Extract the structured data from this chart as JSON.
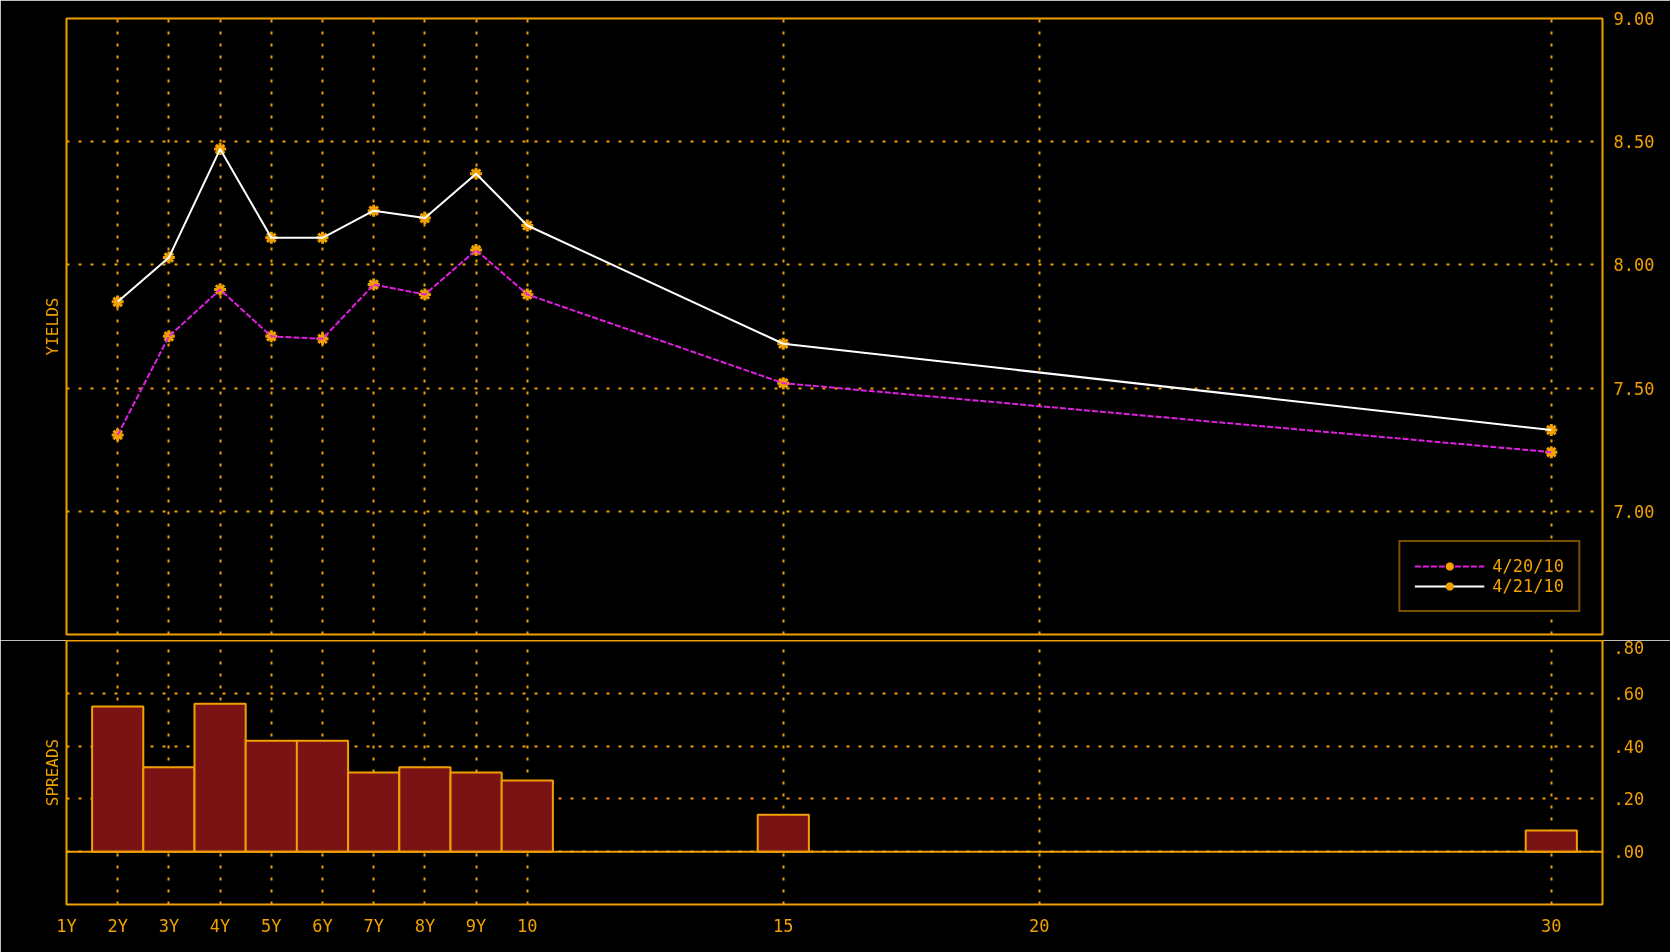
{
  "chart_data": [
    {
      "type": "line",
      "ylabel": "YIELDS",
      "x": [
        2,
        3,
        4,
        5,
        6,
        7,
        8,
        9,
        10,
        15,
        30
      ],
      "series": [
        {
          "name": "4/20/10",
          "color": "#e020e0",
          "line_style": "dashed",
          "values": [
            7.31,
            7.71,
            7.9,
            7.71,
            7.7,
            7.92,
            7.88,
            8.06,
            7.88,
            7.52,
            7.24
          ]
        },
        {
          "name": "4/21/10",
          "color": "#ffffff",
          "line_style": "solid",
          "values": [
            7.85,
            8.03,
            8.47,
            8.11,
            8.11,
            8.22,
            8.19,
            8.37,
            8.16,
            7.68,
            7.33
          ]
        }
      ],
      "marker": "cross",
      "xlim": [
        1,
        31
      ],
      "xticks": [
        1,
        2,
        3,
        4,
        5,
        6,
        7,
        8,
        9,
        10,
        15,
        20,
        30
      ],
      "ylim": [
        6.5,
        9.0
      ],
      "yticks": [
        {
          "value": 7,
          "label": "7.00"
        },
        {
          "value": 7.5,
          "label": "7.50"
        },
        {
          "value": 8,
          "label": "8.00"
        },
        {
          "value": 8.5,
          "label": "8.50"
        },
        {
          "value": 9,
          "label": "9.00"
        }
      ],
      "grid": true,
      "legend": "bottom right",
      "tick_labels": "y"
    },
    {
      "type": "bar",
      "ylabel": "SPREADS",
      "x": [
        2,
        3,
        4,
        5,
        6,
        7,
        8,
        9,
        10,
        15,
        30
      ],
      "values": [
        0.55,
        0.32,
        0.56,
        0.42,
        0.42,
        0.3,
        0.32,
        0.3,
        0.27,
        0.14,
        0.08
      ],
      "color": "#7a1414",
      "xlim": [
        1,
        31
      ],
      "xticks": [
        {
          "value": 1,
          "label": "1Y"
        },
        {
          "value": 2,
          "label": "2Y"
        },
        {
          "value": 3,
          "label": "3Y"
        },
        {
          "value": 4,
          "label": "4Y"
        },
        {
          "value": 5,
          "label": "5Y"
        },
        {
          "value": 6,
          "label": "6Y"
        },
        {
          "value": 7,
          "label": "7Y"
        },
        {
          "value": 8,
          "label": "8Y"
        },
        {
          "value": 9,
          "label": "9Y"
        },
        10,
        15,
        20,
        30
      ],
      "ylim": [
        -0.2,
        0.8
      ],
      "yticks": [
        {
          "value": 0,
          "label": ".00"
        },
        {
          "value": 0.2,
          "label": ".20"
        },
        {
          "value": 0.4,
          "label": ".40"
        },
        {
          "value": 0.6,
          "label": ".60"
        },
        {
          "value": 0.8,
          "label": ".80"
        }
      ],
      "grid": true,
      "ref_lines": [
        {
          "axis": "y",
          "value": 0,
          "color": "#f0a000"
        }
      ]
    }
  ]
}
